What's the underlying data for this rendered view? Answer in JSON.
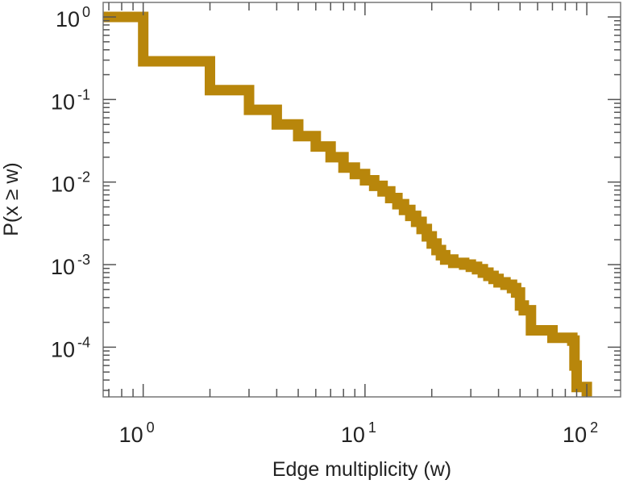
{
  "chart_data": {
    "type": "line",
    "style": "step-post",
    "title": "",
    "xlabel": "Edge multiplicity (w)",
    "ylabel": "P(x ≥ w)",
    "xscale": "log",
    "yscale": "log",
    "xlim": [
      0.66,
      142
    ],
    "ylim": [
      2.5e-05,
      1.5
    ],
    "grid": false,
    "color": "#b8860b",
    "xticks": [
      {
        "base": "10",
        "exp": "0",
        "value": 1
      },
      {
        "base": "10",
        "exp": "1",
        "value": 10
      },
      {
        "base": "10",
        "exp": "2",
        "value": 100
      }
    ],
    "yticks": [
      {
        "base": "10",
        "exp": "0",
        "value": 1
      },
      {
        "base": "10",
        "exp": "-1",
        "value": 0.1
      },
      {
        "base": "10",
        "exp": "-2",
        "value": 0.01
      },
      {
        "base": "10",
        "exp": "-3",
        "value": 0.001
      },
      {
        "base": "10",
        "exp": "-4",
        "value": 0.0001
      }
    ],
    "x": [
      0.66,
      1,
      2,
      3,
      4,
      5,
      6,
      7,
      8,
      9,
      10,
      11,
      12,
      13,
      14,
      15,
      16,
      17,
      18,
      19,
      20,
      21,
      22,
      23,
      25,
      28,
      30,
      32,
      34,
      36,
      38,
      40,
      43,
      46,
      48,
      50,
      52,
      56,
      70,
      86,
      88,
      90,
      100
    ],
    "y": [
      1,
      0.29,
      0.13,
      0.075,
      0.05,
      0.036,
      0.027,
      0.02,
      0.015,
      0.0125,
      0.0105,
      0.009,
      0.0077,
      0.0064,
      0.0054,
      0.0046,
      0.0039,
      0.0033,
      0.0027,
      0.0022,
      0.0018,
      0.0015,
      0.0013,
      0.00115,
      0.00105,
      0.001,
      0.00094,
      0.00088,
      0.0008,
      0.00073,
      0.00067,
      0.00061,
      0.00057,
      0.00052,
      0.00046,
      0.00032,
      0.00028,
      0.00016,
      0.00013,
      0.00012,
      6e-05,
      3.3e-05,
      2.5e-05
    ]
  }
}
